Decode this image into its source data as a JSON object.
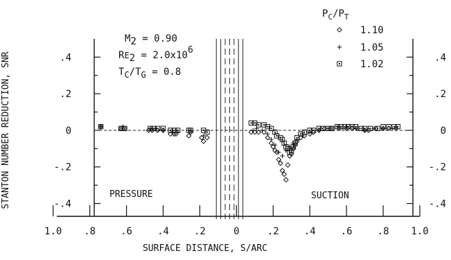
{
  "chart_data": {
    "type": "scatter",
    "xlabel": "SURFACE DISTANCE, S/ARC",
    "ylabel": "STANTON NUMBER REDUCTION, SNR",
    "xlim": [
      -0.98,
      1.0
    ],
    "ylim": [
      -0.47,
      0.5
    ],
    "x_ticks": [
      "1.0",
      ".8",
      ".6",
      ".4",
      ".2",
      "0",
      ".2",
      ".4",
      ".6",
      ".8",
      "1.0"
    ],
    "y_ticks": [
      ".4",
      ".2",
      "0",
      "-.2",
      "-.4"
    ],
    "conditions": {
      "mach": {
        "sym": "M",
        "sub": "2",
        "rest": " = 0.90"
      },
      "reynolds": {
        "sym": "R",
        "small": "E",
        "sub": "2",
        "rest": " = 2.0x10",
        "sup": "6"
      },
      "temp_ratio": {
        "sym": "T",
        "sub": "C",
        "mid": "/T",
        "sub2": "G",
        "rest": " = 0.8"
      }
    },
    "legend_title": {
      "a": "P",
      "a_sub": "C",
      "mid": "/P",
      "b_sub": "T"
    },
    "region_labels": {
      "pressure": "PRESSURE",
      "suction": "SUCTION"
    },
    "blowing_band": {
      "x_from": -0.11,
      "x_to": 0.035
    },
    "series": [
      {
        "name": "1.10",
        "marker": "diamond",
        "x": [
          -0.74,
          -0.63,
          -0.61,
          -0.48,
          -0.46,
          -0.43,
          -0.4,
          -0.36,
          -0.34,
          -0.33,
          -0.26,
          -0.25,
          -0.19,
          -0.18,
          -0.16,
          0.08,
          0.1,
          0.12,
          0.15,
          0.17,
          0.19,
          0.2,
          0.21,
          0.22,
          0.23,
          0.24,
          0.25,
          0.26,
          0.27,
          0.28,
          0.29,
          0.3,
          0.31,
          0.32,
          0.33,
          0.35,
          0.37,
          0.4,
          0.42,
          0.45,
          0.48,
          0.52,
          0.56,
          0.6,
          0.63,
          0.66,
          0.7,
          0.72,
          0.76,
          0.8,
          0.83,
          0.87
        ],
        "y": [
          0.02,
          0.01,
          0.01,
          0.0,
          0.0,
          0.0,
          0.0,
          -0.02,
          -0.02,
          -0.02,
          -0.03,
          -0.01,
          -0.04,
          -0.06,
          -0.04,
          -0.01,
          -0.01,
          -0.01,
          -0.01,
          -0.04,
          -0.07,
          -0.09,
          -0.11,
          -0.12,
          -0.16,
          -0.18,
          -0.22,
          -0.24,
          -0.27,
          -0.19,
          -0.14,
          -0.13,
          -0.1,
          -0.08,
          -0.06,
          -0.04,
          -0.03,
          -0.02,
          -0.01,
          0.0,
          0.01,
          0.01,
          0.01,
          0.01,
          0.01,
          0.01,
          0.0,
          0.0,
          0.01,
          0.01,
          0.01,
          0.01
        ]
      },
      {
        "name": "1.05",
        "marker": "plus",
        "x": [
          -0.74,
          -0.62,
          -0.47,
          -0.44,
          -0.4,
          -0.35,
          -0.32,
          -0.25,
          -0.18,
          0.09,
          0.11,
          0.14,
          0.17,
          0.19,
          0.21,
          0.23,
          0.25,
          0.27,
          0.29,
          0.31,
          0.33,
          0.36,
          0.4,
          0.45,
          0.5,
          0.55,
          0.6,
          0.65,
          0.7,
          0.75,
          0.8,
          0.85
        ],
        "y": [
          0.02,
          0.02,
          0.01,
          0.01,
          0.0,
          -0.01,
          -0.01,
          0.0,
          -0.03,
          0.0,
          0.01,
          0.0,
          -0.02,
          -0.05,
          -0.08,
          -0.12,
          -0.14,
          -0.11,
          -0.09,
          -0.07,
          -0.05,
          -0.03,
          -0.01,
          0.0,
          0.01,
          0.02,
          0.02,
          0.01,
          0.0,
          0.01,
          0.01,
          0.01
        ]
      },
      {
        "name": "1.02",
        "marker": "square",
        "x": [
          -0.74,
          -0.63,
          -0.61,
          -0.47,
          -0.45,
          -0.43,
          -0.4,
          -0.36,
          -0.34,
          -0.32,
          -0.26,
          -0.25,
          -0.18,
          -0.16,
          0.08,
          0.1,
          0.12,
          0.15,
          0.17,
          0.19,
          0.21,
          0.22,
          0.24,
          0.25,
          0.26,
          0.27,
          0.28,
          0.29,
          0.3,
          0.31,
          0.32,
          0.33,
          0.35,
          0.37,
          0.4,
          0.42,
          0.45,
          0.47,
          0.5,
          0.52,
          0.55,
          0.57,
          0.59,
          0.61,
          0.63,
          0.65,
          0.68,
          0.7,
          0.73,
          0.77,
          0.8,
          0.83,
          0.86,
          0.88
        ],
        "y": [
          0.02,
          0.01,
          0.01,
          0.01,
          0.01,
          0.01,
          0.01,
          0.0,
          0.0,
          0.0,
          0.0,
          0.0,
          0.0,
          -0.01,
          0.04,
          0.04,
          0.03,
          0.03,
          0.02,
          0.01,
          -0.01,
          -0.03,
          -0.04,
          -0.05,
          -0.07,
          -0.09,
          -0.1,
          -0.12,
          -0.11,
          -0.09,
          -0.07,
          -0.04,
          -0.02,
          -0.01,
          0.0,
          0.0,
          0.01,
          0.01,
          0.01,
          0.01,
          0.02,
          0.02,
          0.02,
          0.02,
          0.02,
          0.02,
          0.01,
          0.01,
          0.01,
          0.01,
          0.02,
          0.02,
          0.02,
          0.02
        ]
      }
    ]
  }
}
